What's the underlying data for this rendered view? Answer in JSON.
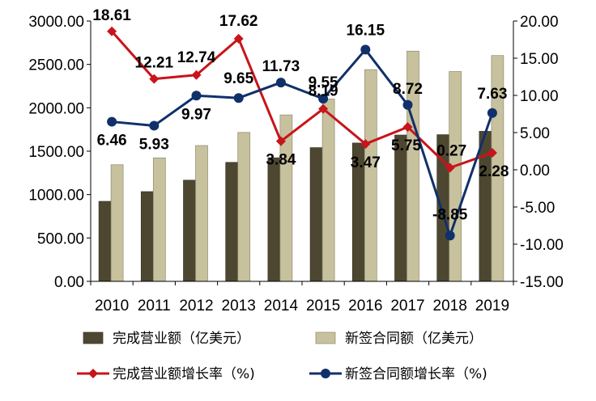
{
  "chart_data": {
    "type": "bar+line",
    "categories": [
      "2010",
      "2011",
      "2012",
      "2013",
      "2014",
      "2015",
      "2016",
      "2017",
      "2018",
      "2019"
    ],
    "left_axis": {
      "ylim": [
        0,
        3000
      ],
      "ticks": [
        "0.00",
        "500.00",
        "1000.00",
        "1500.00",
        "2000.00",
        "2500.00",
        "3000.00"
      ]
    },
    "right_axis": {
      "ylim": [
        -15,
        20
      ],
      "ticks": [
        "-15.00",
        "-10.00",
        "-5.00",
        "0.00",
        "5.00",
        "10.00",
        "15.00",
        "20.00"
      ]
    },
    "series": [
      {
        "name": "完成营业额（亿美元）",
        "type": "bar",
        "axis": "left",
        "color": "#4d4732",
        "values": [
          922,
          1034,
          1166,
          1371,
          1424,
          1541,
          1594,
          1686,
          1690,
          1729
        ]
      },
      {
        "name": "新签合同额（亿美元）",
        "type": "bar",
        "axis": "left",
        "color": "#c7c19e",
        "values": [
          1344,
          1423,
          1565,
          1716,
          1918,
          2101,
          2440,
          2653,
          2418,
          2602
        ]
      },
      {
        "name": "完成营业额增长率（%)",
        "type": "line",
        "axis": "right",
        "color": "#c8141a",
        "marker": "diamond",
        "values": [
          18.61,
          12.21,
          12.74,
          17.62,
          3.84,
          8.19,
          3.47,
          5.75,
          0.27,
          2.28
        ],
        "labels": [
          "18.61",
          "12.21",
          "12.74",
          "17.62",
          "3.84",
          "8.19",
          "3.47",
          "5.75",
          "0.27",
          "2.28"
        ]
      },
      {
        "name": "新签合同额增长率（%)",
        "type": "line",
        "axis": "right",
        "color": "#10306a",
        "marker": "circle",
        "values": [
          6.46,
          5.93,
          9.97,
          9.65,
          11.73,
          9.55,
          16.15,
          8.72,
          -8.85,
          7.63
        ],
        "labels": [
          "6.46",
          "5.93",
          "9.97",
          "9.65",
          "11.73",
          "9.55",
          "16.15",
          "8.72",
          "-8.85",
          "7.63"
        ]
      }
    ],
    "legend": {
      "placement": "bottom",
      "entries": [
        "完成营业额（亿美元）",
        "新签合同额（亿美元）",
        "完成营业额增长率（%)",
        "新签合同额增长率（%)"
      ]
    },
    "grid": false
  }
}
